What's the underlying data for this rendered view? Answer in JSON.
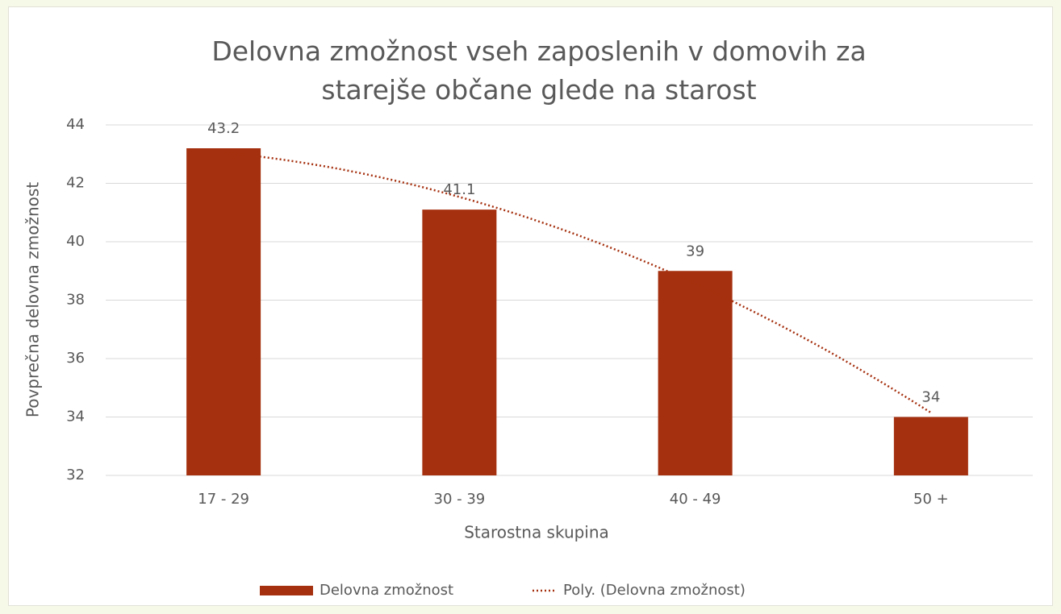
{
  "chart_data": {
    "type": "bar",
    "title": "Delovna zmožnost vseh zaposlenih v domovih za starejše občane glede na starost",
    "x_label": "Starostna skupina",
    "y_label": "Povprečna delovna zmožnost",
    "categories": [
      "17 - 29",
      "30 - 39",
      "40 - 49",
      "50 +"
    ],
    "series": [
      {
        "name": "Delovna zmožnost",
        "color": "#a5300f",
        "values": [
          43.2,
          41.1,
          39,
          34
        ]
      }
    ],
    "trendline": {
      "name": "Poly. (Delovna zmožnost)",
      "kind": "polynomial",
      "order": 2,
      "color": "#a5300f"
    },
    "ylim": [
      32,
      44
    ],
    "yticks": [
      32,
      34,
      36,
      38,
      40,
      42,
      44
    ],
    "grid": true,
    "legend": "bottom"
  }
}
